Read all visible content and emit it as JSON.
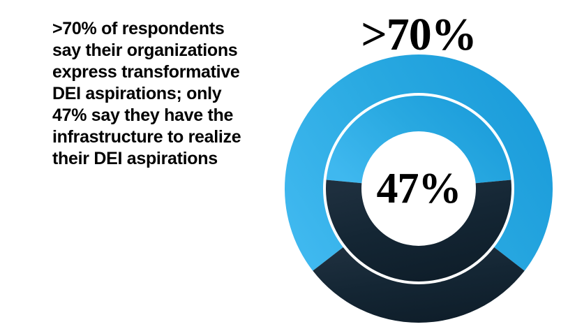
{
  "caption": {
    "lines": [
      ">70% of respondents",
      "say their organizations",
      "express transformative",
      "DEI aspirations; only",
      "47% say they have the",
      "infrastructure to realize",
      "their DEI aspirations"
    ],
    "text": ">70% of respondents say their organizations express transformative DEI aspirations; only 47% say they have the infrastructure to realize their DEI aspirations"
  },
  "chart_data": {
    "type": "donut",
    "subtype": "two-concentric-rings",
    "legend": "none",
    "rings": [
      {
        "ring": "outer",
        "label": ">70%",
        "value_pct": 71,
        "remainder_pct": 29,
        "segment_alignment": "centered-at-top",
        "label_placement": "above-chart"
      },
      {
        "ring": "inner",
        "label": "47%",
        "value_pct": 47,
        "remainder_pct": 53,
        "segment_alignment": "centered-at-top",
        "label_placement": "center-hole"
      }
    ],
    "value_color_meaning": "blue arc = stated percentage; dark navy arc = remainder"
  },
  "colors": {
    "background": "#ffffff",
    "caption_text": "#000000",
    "label_text": "#000000",
    "segment_blue": "#29a9e1",
    "segment_blue_light": "#3fb8ef",
    "segment_blue_deep": "#1a9bda",
    "remainder_navy": "#142634",
    "remainder_navy_light": "#1e2f3e",
    "remainder_navy_deep": "#0e1d29",
    "ring_separator": "#ffffff"
  }
}
